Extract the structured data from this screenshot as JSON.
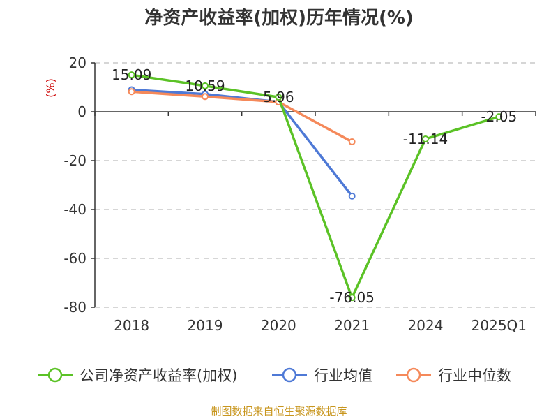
{
  "chart_data": {
    "type": "line",
    "title": "净资产收益率(加权)历年情况(%)",
    "ylabel": "(%)",
    "ylim": [
      -80,
      20
    ],
    "yticks": [
      20,
      0,
      -20,
      -40,
      -60,
      -80
    ],
    "categories": [
      "2018",
      "2019",
      "2020",
      "2021",
      "2024",
      "2025Q1"
    ],
    "series": [
      {
        "name": "公司净资产收益率(加权)",
        "color": "#5bc226",
        "values": [
          15.09,
          10.59,
          5.96,
          -76.05,
          -11.14,
          -2.05
        ],
        "labels": [
          "15.09",
          "10.59",
          "5.96",
          "-76.05",
          "-11.14",
          "-2.05"
        ]
      },
      {
        "name": "行业均值",
        "color": "#4e79d6",
        "values": [
          9.0,
          7.2,
          4.0,
          -34.5,
          null,
          null
        ]
      },
      {
        "name": "行业中位数",
        "color": "#f5895a",
        "values": [
          8.2,
          6.2,
          4.0,
          -12.3,
          null,
          null
        ]
      }
    ],
    "grid": true
  },
  "source": "制图数据来自恒生聚源数据库"
}
